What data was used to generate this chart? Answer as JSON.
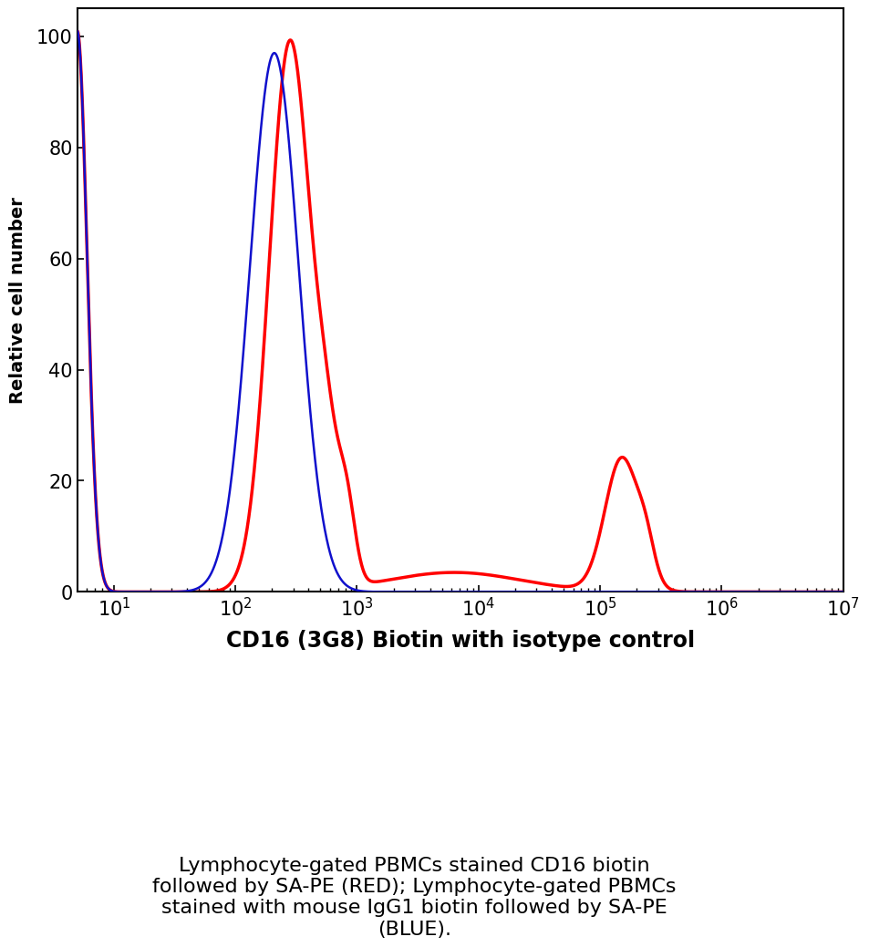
{
  "xlabel": "CD16 (3G8) Biotin with isotype control",
  "ylabel": "Relative cell number",
  "caption": "Lymphocyte-gated PBMCs stained CD16 biotin\nfollowed by SA-PE (RED); Lymphocyte-gated PBMCs\nstained with mouse IgG1 biotin followed by SA-PE\n(BLUE).",
  "xlim_log_min": 0.699,
  "xlim_log_max": 7.0,
  "ylim": [
    0,
    105
  ],
  "yticks": [
    0,
    20,
    40,
    60,
    80,
    100
  ],
  "red_color": "#FF0000",
  "blue_color": "#1010CC",
  "red_linewidth": 2.5,
  "blue_linewidth": 1.8,
  "xlabel_fontsize": 17,
  "ylabel_fontsize": 14,
  "caption_fontsize": 16,
  "tick_fontsize": 15,
  "background_color": "#FFFFFF"
}
